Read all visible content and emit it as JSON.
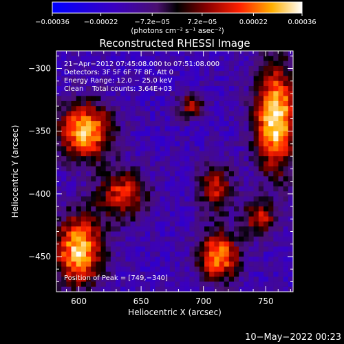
{
  "chart_data": {
    "type": "heatmap",
    "title": "Reconstructed RHESSI Image",
    "xlabel": "Heliocentric X (arcsec)",
    "ylabel": "Heliocentric Y (arcsec)",
    "xlim": [
      582,
      772
    ],
    "ylim": [
      -478,
      -286
    ],
    "x_ticks": [
      600,
      650,
      700,
      750
    ],
    "x_tick_labels": [
      "600",
      "650",
      "700",
      "750"
    ],
    "y_ticks": [
      -300,
      -350,
      -400,
      -450
    ],
    "y_tick_labels": [
      "−300",
      "−350",
      "−400",
      "−450"
    ],
    "colorbar": {
      "range": [
        -0.00036,
        0.00036
      ],
      "tick_values": [
        -0.00036,
        -0.00022,
        -7.2e-05,
        7.2e-05,
        0.00022,
        0.00036
      ],
      "tick_labels": [
        "−0.00036",
        "−0.00022",
        "−7.2e−05",
        "7.2e−05",
        "0.00022",
        "0.00036"
      ],
      "unit_label": "(photons cm⁻² s⁻¹ asec⁻²)"
    },
    "annotations": [
      "21−Apr−2012 07:45:08.000 to 07:51:08.000",
      "Detectors: 3F 5F 6F 7F 8F, Att 0",
      "Energy Range: 12.0 − 25.0 keV",
      "Clean    Total counts: 3.64E+03"
    ],
    "peak_label": "Position of Peak = [749,−340]",
    "peak_position": [
      749,
      -340
    ],
    "sources": [
      {
        "x": 758,
        "y": -340,
        "sx": 12,
        "sy": 30,
        "amp": 0.00036
      },
      {
        "x": 605,
        "y": -350,
        "sx": 16,
        "sy": 16,
        "amp": 0.0003
      },
      {
        "x": 600,
        "y": -445,
        "sx": 14,
        "sy": 20,
        "amp": 0.00032
      },
      {
        "x": 712,
        "y": -450,
        "sx": 12,
        "sy": 14,
        "amp": 0.00026
      },
      {
        "x": 635,
        "y": -400,
        "sx": 14,
        "sy": 14,
        "amp": 0.00016
      },
      {
        "x": 710,
        "y": -395,
        "sx": 10,
        "sy": 14,
        "amp": 0.00014
      },
      {
        "x": 745,
        "y": -420,
        "sx": 10,
        "sy": 10,
        "amp": 0.00012
      },
      {
        "x": 690,
        "y": -330,
        "sx": 8,
        "sy": 8,
        "amp": 8e-05
      }
    ],
    "background_level": -0.00016
  },
  "footer": {
    "timestamp": "10−May−2022 00:23"
  }
}
